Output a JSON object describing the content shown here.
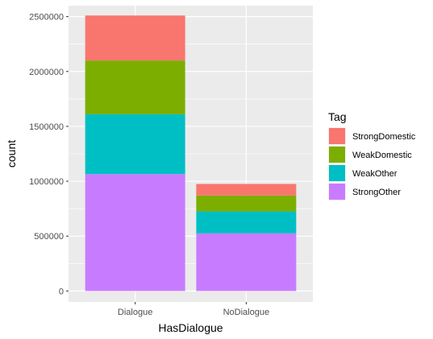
{
  "chart_data": {
    "type": "bar",
    "stacked": true,
    "xlabel": "HasDialogue",
    "ylabel": "count",
    "categories": [
      "Dialogue",
      "NoDialogue"
    ],
    "ylim": [
      -100000,
      2600000
    ],
    "yticks": [
      0,
      500000,
      1000000,
      1500000,
      2000000,
      2500000
    ],
    "ytick_labels": [
      "0",
      "500000",
      "1000000",
      "1500000",
      "2000000",
      "2500000"
    ],
    "legend": {
      "title": "Tag",
      "placement": "right"
    },
    "series": [
      {
        "name": "StrongOther",
        "color": "#C77CFF",
        "values": [
          1065000,
          525000
        ]
      },
      {
        "name": "WeakOther",
        "color": "#00BFC4",
        "values": [
          545000,
          200000
        ]
      },
      {
        "name": "WeakDomestic",
        "color": "#7CAE00",
        "values": [
          490000,
          145000
        ]
      },
      {
        "name": "StrongDomestic",
        "color": "#F8766D",
        "values": [
          410000,
          105000
        ]
      }
    ],
    "legend_order": [
      "StrongDomestic",
      "WeakDomestic",
      "WeakOther",
      "StrongOther"
    ],
    "panel_background": "#EBEBEB",
    "grid": true
  }
}
